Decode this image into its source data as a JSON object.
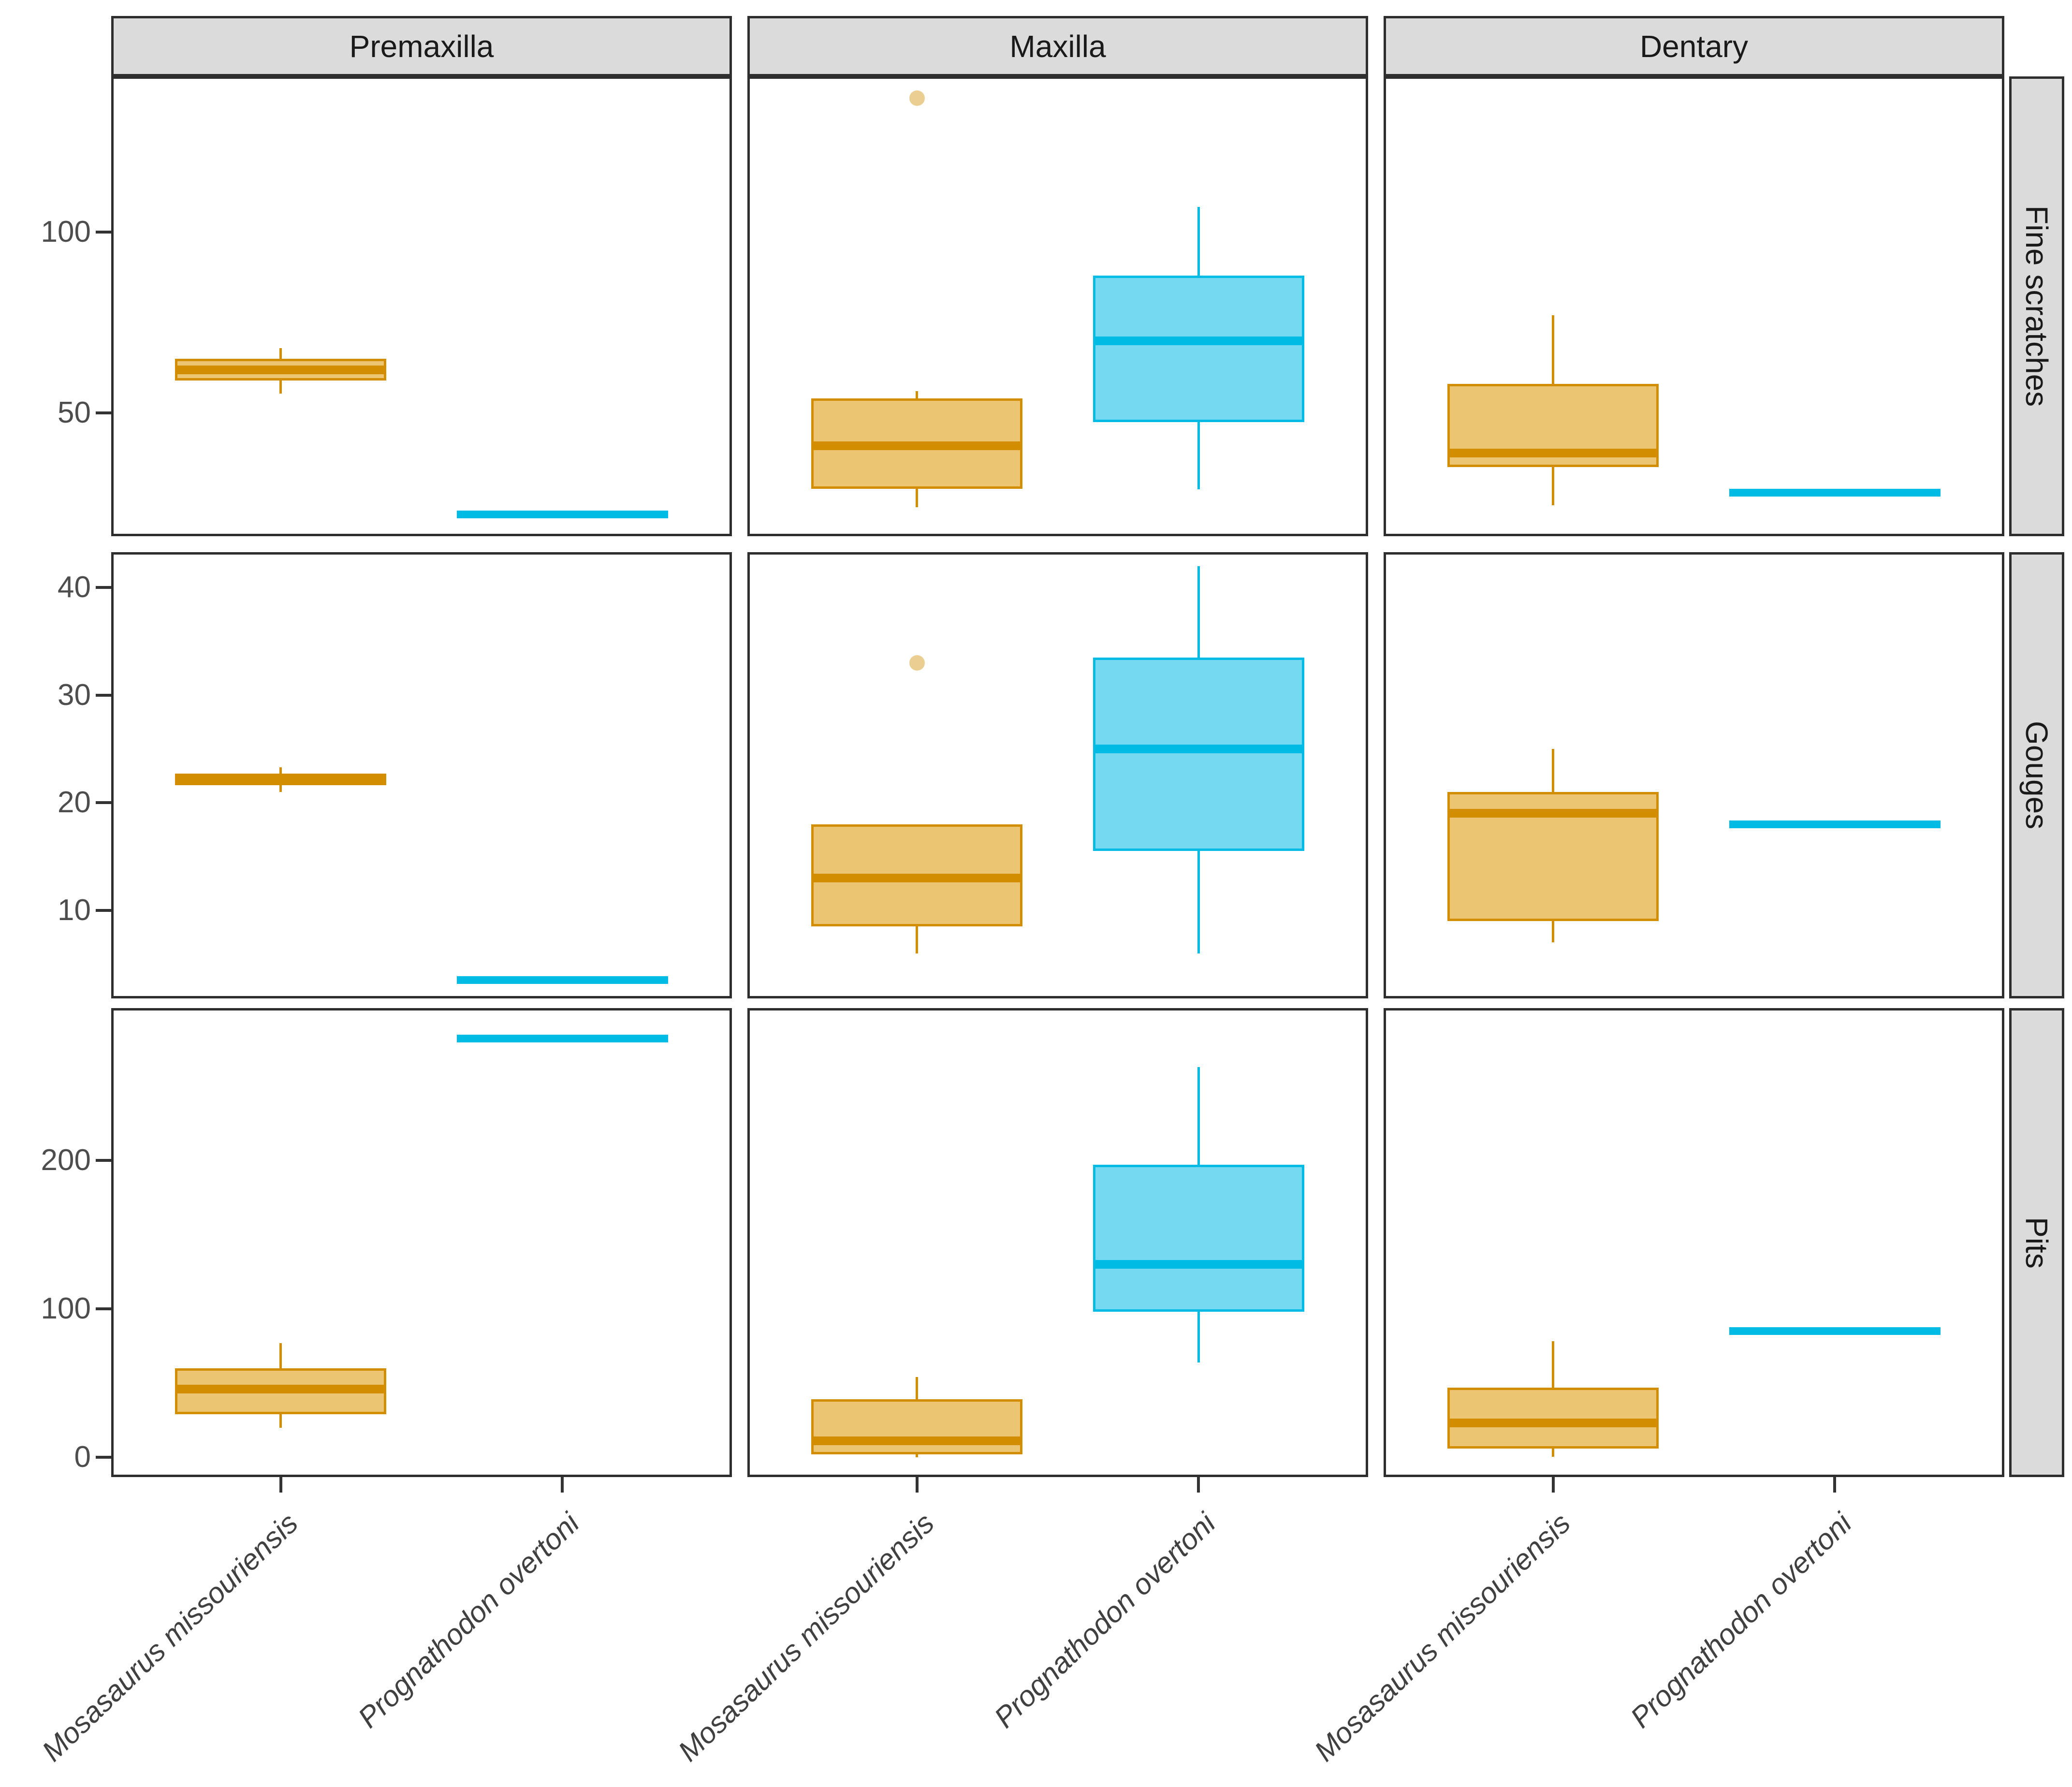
{
  "chart_data": {
    "type": "boxplot",
    "title": "",
    "facet_columns": [
      "Premaxilla",
      "Maxilla",
      "Dentary"
    ],
    "facet_rows": [
      "Fine scratches",
      "Gouges",
      "Pits"
    ],
    "x_categories": [
      "Mosasaurus missouriensis",
      "Prognathodon overtoni"
    ],
    "legend_position": "none",
    "grid": "off",
    "colors": {
      "mosasaurus_fill": "#EBC572",
      "mosasaurus_stroke": "#D28E00",
      "mosasaurus_outlier": "rgba(211,146,12,0.45)",
      "prognathodon_fill": "#74D9F1",
      "prognathodon_stroke": "#00BCE4",
      "strip_bg": "#DBDBDB",
      "panel_border": "#2E2E2E",
      "axis_text": "#4D4D4D"
    },
    "rows": [
      {
        "label": "Fine scratches",
        "ylim": [
          16,
          143
        ],
        "yticks": [
          50,
          100
        ],
        "panels": [
          {
            "column": "Premaxilla",
            "boxes": [
              {
                "species": "Mosasaurus missouriensis",
                "min": 55.5,
                "q1": 59,
                "median": 62,
                "q3": 65,
                "max": 68,
                "outliers": []
              },
              {
                "species": "Prognathodon overtoni",
                "flat": true,
                "value": 22,
                "outliers": []
              }
            ]
          },
          {
            "column": "Maxilla",
            "boxes": [
              {
                "species": "Mosasaurus missouriensis",
                "min": 24,
                "q1": 29,
                "median": 41,
                "q3": 54,
                "max": 56,
                "outliers": [
                  137
                ]
              },
              {
                "species": "Prognathodon overtoni",
                "min": 29,
                "q1": 47.5,
                "median": 70,
                "q3": 88,
                "max": 107,
                "outliers": []
              }
            ]
          },
          {
            "column": "Dentary",
            "boxes": [
              {
                "species": "Mosasaurus missouriensis",
                "min": 24.5,
                "q1": 35,
                "median": 39,
                "q3": 58,
                "max": 77,
                "outliers": []
              },
              {
                "species": "Prognathodon overtoni",
                "flat": true,
                "value": 28,
                "outliers": []
              }
            ]
          }
        ]
      },
      {
        "label": "Gouges",
        "ylim": [
          1.8,
          43.3
        ],
        "yticks": [
          10,
          20,
          30,
          40
        ],
        "panels": [
          {
            "column": "Premaxilla",
            "boxes": [
              {
                "species": "Mosasaurus missouriensis",
                "min": 21,
                "q1": 21.6,
                "median": 22.1,
                "q3": 22.7,
                "max": 23.3,
                "outliers": []
              },
              {
                "species": "Prognathodon overtoni",
                "flat": true,
                "value": 3.5,
                "outliers": []
              }
            ]
          },
          {
            "column": "Maxilla",
            "boxes": [
              {
                "species": "Mosasaurus missouriensis",
                "min": 6,
                "q1": 8.5,
                "median": 13,
                "q3": 18,
                "max": 18,
                "outliers": [
                  33
                ]
              },
              {
                "species": "Prognathodon overtoni",
                "min": 6,
                "q1": 15.5,
                "median": 25,
                "q3": 33.5,
                "max": 42,
                "outliers": []
              }
            ]
          },
          {
            "column": "Dentary",
            "boxes": [
              {
                "species": "Mosasaurus missouriensis",
                "min": 7,
                "q1": 9,
                "median": 19,
                "q3": 21,
                "max": 25,
                "outliers": []
              },
              {
                "species": "Prognathodon overtoni",
                "flat": true,
                "value": 18,
                "outliers": []
              }
            ]
          }
        ]
      },
      {
        "label": "Pits",
        "ylim": [
          -13.4,
          302.6
        ],
        "yticks": [
          0,
          100,
          200
        ],
        "panels": [
          {
            "column": "Premaxilla",
            "boxes": [
              {
                "species": "Mosasaurus missouriensis",
                "min": 20,
                "q1": 29,
                "median": 46,
                "q3": 60,
                "max": 77,
                "outliers": []
              },
              {
                "species": "Prognathodon overtoni",
                "flat": true,
                "value": 282,
                "outliers": []
              }
            ]
          },
          {
            "column": "Maxilla",
            "boxes": [
              {
                "species": "Mosasaurus missouriensis",
                "min": 0,
                "q1": 2,
                "median": 11,
                "q3": 39,
                "max": 54,
                "outliers": []
              },
              {
                "species": "Prognathodon overtoni",
                "min": 64,
                "q1": 98,
                "median": 130,
                "q3": 197,
                "max": 263,
                "outliers": []
              }
            ]
          },
          {
            "column": "Dentary",
            "boxes": [
              {
                "species": "Mosasaurus missouriensis",
                "min": 0,
                "q1": 6,
                "median": 23,
                "q3": 47,
                "max": 78,
                "outliers": []
              },
              {
                "species": "Prognathodon overtoni",
                "flat": true,
                "value": 85,
                "outliers": []
              }
            ]
          }
        ]
      }
    ]
  }
}
